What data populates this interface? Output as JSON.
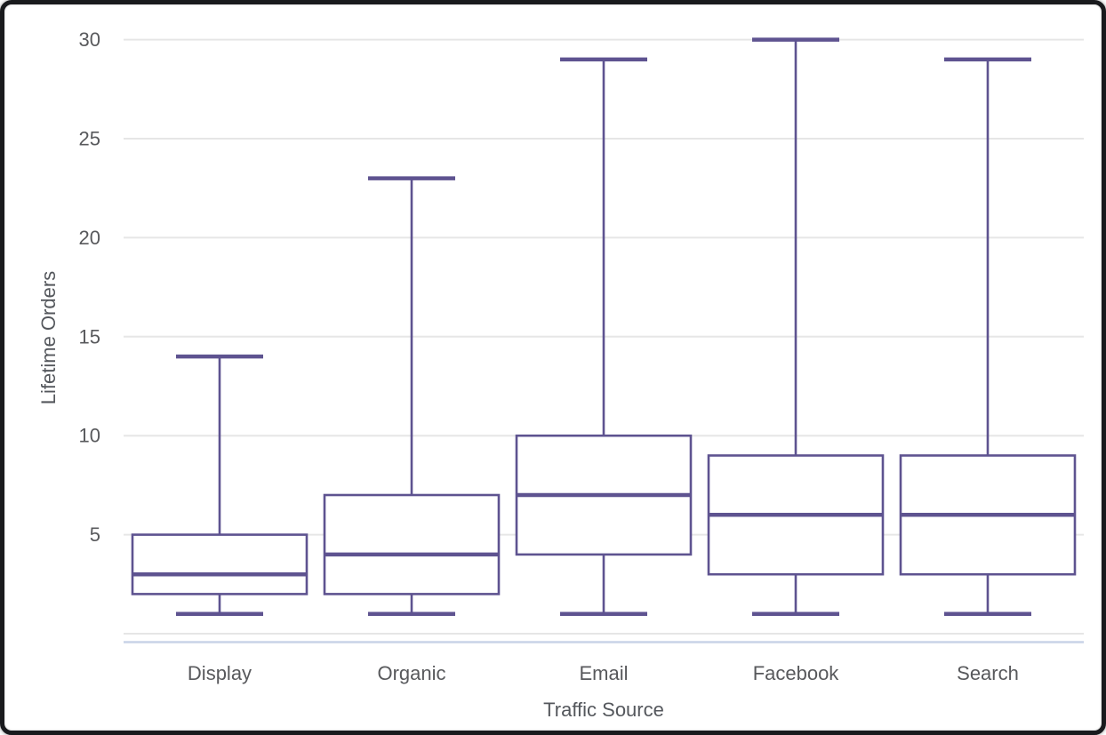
{
  "card": {
    "border_color": "#191a1d",
    "background": "#ffffff"
  },
  "chart_data": {
    "type": "boxplot",
    "title": "",
    "xlabel": "Traffic Source",
    "ylabel": "Lifetime Orders",
    "categories": [
      "Display",
      "Organic",
      "Email",
      "Facebook",
      "Search"
    ],
    "series": [
      {
        "name": "Lifetime Orders",
        "boxes": [
          {
            "category": "Display",
            "min": 1,
            "q1": 2,
            "median": 3,
            "q3": 5,
            "max": 14
          },
          {
            "category": "Organic",
            "min": 1,
            "q1": 2,
            "median": 4,
            "q3": 7,
            "max": 23
          },
          {
            "category": "Email",
            "min": 1,
            "q1": 4,
            "median": 7,
            "q3": 10,
            "max": 29
          },
          {
            "category": "Facebook",
            "min": 1,
            "q1": 3,
            "median": 6,
            "q3": 9,
            "max": 30
          },
          {
            "category": "Search",
            "min": 1,
            "q1": 3,
            "median": 6,
            "q3": 9,
            "max": 29
          }
        ]
      }
    ],
    "y_axis": {
      "min": 0,
      "max": 30,
      "tick_labels": [
        5,
        10,
        15,
        20,
        25,
        30
      ],
      "gridline_values": [
        0,
        5,
        10,
        15,
        20,
        25,
        30
      ],
      "grid": true
    },
    "legend": "none",
    "colors": {
      "box_stroke": "#5e5390",
      "box_fill": "#ffffff",
      "median": "#5e5390",
      "whisker": "#5e5390",
      "gridline": "#e6e6e6",
      "axis_line": "#c9d3e7",
      "tick_label": "#58595c",
      "axis_title": "#54575c"
    }
  }
}
